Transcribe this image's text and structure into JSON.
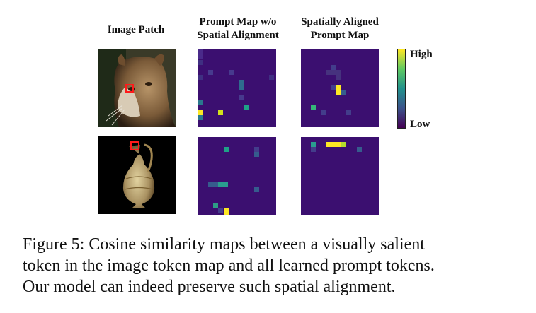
{
  "headers": {
    "image_patch": "Image Patch",
    "prompt_map_wo_line1": "Prompt Map w/o",
    "prompt_map_wo_line2": "Spatial Alignment",
    "aligned_line1": "Spatially Aligned",
    "aligned_line2": "Prompt Map"
  },
  "colorbar": {
    "high_label": "High",
    "low_label": "Low"
  },
  "caption": {
    "line1": "Figure 5: Cosine similarity maps between a visually salient",
    "line2": "token in the image token map and all learned prompt tokens.",
    "line3": "Our model can indeed preserve such spatial alignment."
  },
  "colors": {
    "low": "#3b0f70",
    "mid": "#2a788e",
    "high": "#fde725"
  },
  "rows": [
    {
      "image_name": "cougar-image"
    },
    {
      "image_name": "vase-image"
    }
  ]
}
